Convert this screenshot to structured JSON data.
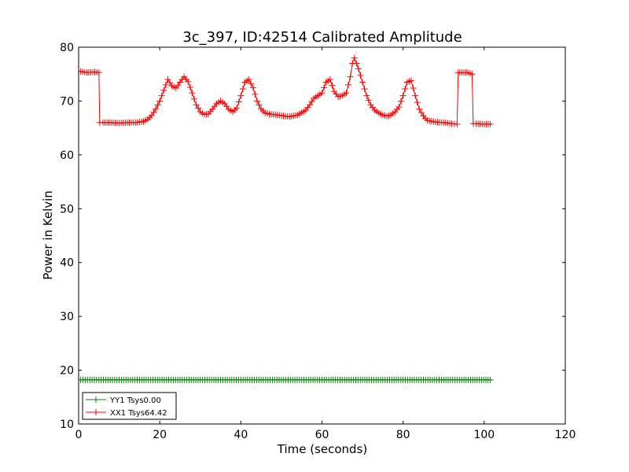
{
  "chart_data": {
    "type": "line",
    "title": "3c_397, ID:42514 Calibrated Amplitude",
    "xlabel": "Time (seconds)",
    "ylabel": "Power in Kelvin",
    "xlim": [
      0,
      120
    ],
    "ylim": [
      10,
      80
    ],
    "xticks": [
      0,
      20,
      40,
      60,
      80,
      100,
      120
    ],
    "yticks": [
      10,
      20,
      30,
      40,
      50,
      60,
      70,
      80
    ],
    "grid": false,
    "legend_position": "lower-left",
    "marker": "+",
    "series": [
      {
        "name": "YY1 Tsys0.00",
        "color": "#008000",
        "x": [
          0.5,
          5,
          10,
          15,
          20,
          25,
          30,
          35,
          40,
          45,
          50,
          55,
          60,
          65,
          70,
          75,
          80,
          85,
          90,
          95,
          101.5
        ],
        "y": [
          18.2,
          18.2,
          18.2,
          18.2,
          18.2,
          18.2,
          18.2,
          18.2,
          18.2,
          18.2,
          18.2,
          18.2,
          18.2,
          18.2,
          18.2,
          18.2,
          18.2,
          18.2,
          18.2,
          18.2,
          18.2
        ]
      },
      {
        "name": "XX1 Tsys64.42",
        "color": "#ff0000",
        "x": [
          0.5,
          2,
          4,
          5,
          5.2,
          6,
          8,
          10,
          12,
          14,
          16,
          17,
          18,
          19,
          20,
          21,
          22,
          23,
          24,
          25,
          26,
          27,
          28,
          29,
          30,
          31,
          32,
          33,
          34,
          35,
          36,
          37,
          38,
          39,
          40,
          41,
          42,
          43,
          44,
          45,
          46,
          47,
          48,
          50,
          52,
          54,
          56,
          57,
          58,
          59,
          60,
          61,
          62,
          63,
          64,
          65,
          66,
          67,
          67.5,
          68,
          69,
          70,
          71,
          72,
          73,
          74,
          75,
          76,
          77,
          78,
          79,
          80,
          81,
          82,
          83,
          84,
          85,
          86,
          88,
          90,
          92,
          93.3,
          93.6,
          94,
          96,
          97,
          97.3,
          98,
          100,
          101.5
        ],
        "y": [
          75.5,
          75.3,
          75.4,
          75.3,
          66.0,
          66.0,
          66.0,
          65.9,
          66.0,
          66.0,
          66.2,
          66.6,
          67.3,
          68.5,
          70.0,
          72.0,
          74.0,
          72.8,
          72.4,
          73.5,
          74.5,
          73.6,
          71.5,
          69.3,
          68.0,
          67.5,
          67.6,
          68.5,
          69.5,
          70.0,
          69.5,
          68.5,
          68.0,
          68.7,
          71.0,
          73.5,
          74.0,
          72.5,
          70.0,
          68.5,
          67.8,
          67.6,
          67.5,
          67.3,
          67.1,
          67.4,
          68.3,
          69.3,
          70.5,
          71.0,
          71.5,
          73.5,
          74.0,
          71.8,
          70.8,
          71.0,
          71.5,
          74.5,
          77.0,
          78.0,
          76.0,
          73.5,
          71.0,
          69.3,
          68.3,
          67.8,
          67.4,
          67.2,
          67.4,
          68.0,
          68.9,
          71.0,
          73.5,
          73.8,
          71.0,
          68.5,
          67.2,
          66.4,
          66.1,
          66.0,
          65.8,
          65.7,
          75.3,
          75.3,
          75.3,
          75.0,
          65.8,
          65.8,
          65.7,
          65.7
        ]
      }
    ]
  }
}
